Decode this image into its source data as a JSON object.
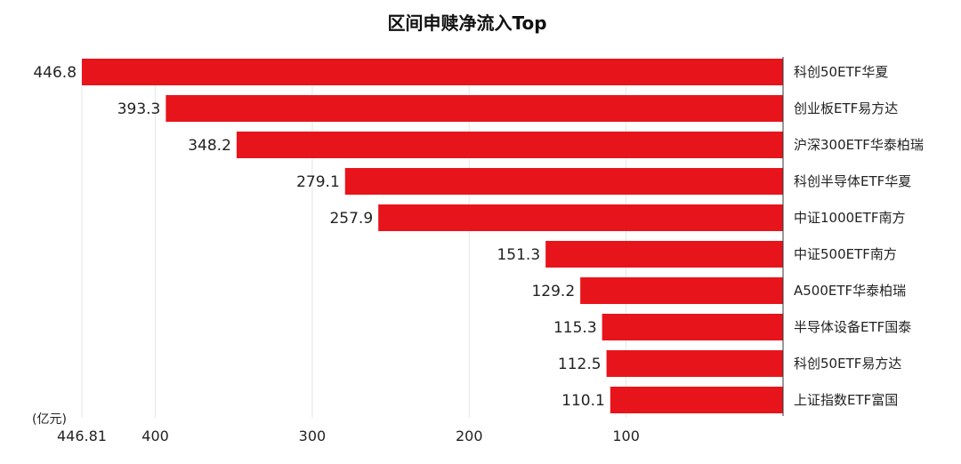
{
  "chart_data": {
    "type": "bar",
    "orientation": "horizontal",
    "title": "区间申赎净流入Top",
    "unit": "(亿元)",
    "categories": [
      "科创50ETF华夏",
      "创业板ETF易方达",
      "沪深300ETF华泰柏瑞",
      "科创半导体ETF华夏",
      "中证1000ETF南方",
      "中证500ETF南方",
      "A500ETF华泰柏瑞",
      "半导体设备ETF国泰",
      "科创50ETF易方达",
      "上证指数ETF富国"
    ],
    "values": [
      446.8,
      393.3,
      348.2,
      279.1,
      257.9,
      151.3,
      129.2,
      115.3,
      112.5,
      110.1
    ],
    "value_labels": [
      "446.8",
      "393.3",
      "348.2",
      "279.1",
      "257.9",
      "151.3",
      "129.2",
      "115.3",
      "112.5",
      "110.1"
    ],
    "x_axis": {
      "reversed": true,
      "xlim": [
        0,
        446.81
      ],
      "ticks": [
        446.81,
        400,
        300,
        200,
        100
      ],
      "tick_labels": [
        "446.81",
        "400",
        "300",
        "200",
        "100"
      ]
    },
    "bar_color": "#e8141b",
    "grid": true,
    "legend": "none"
  }
}
